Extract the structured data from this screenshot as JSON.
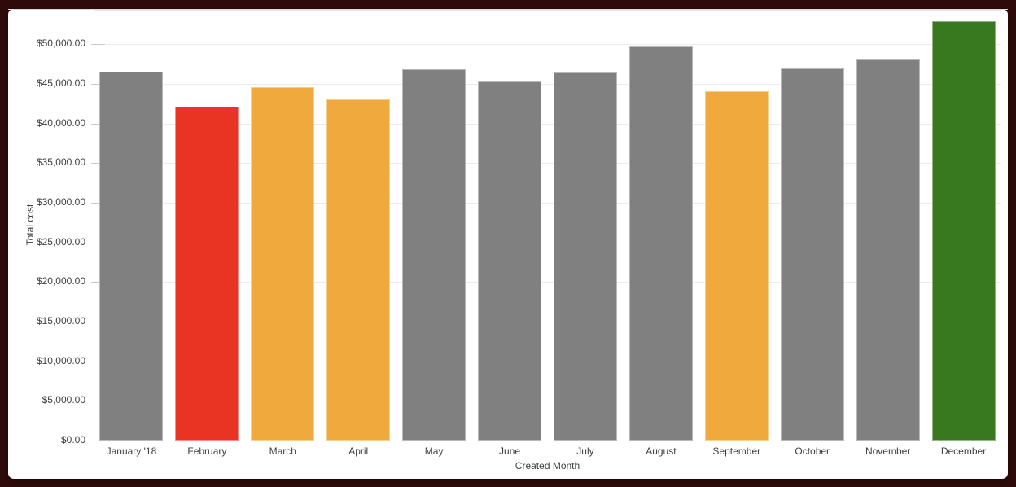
{
  "window": {
    "frame_color": "#2e0a0a",
    "panel_background": "#ffffff"
  },
  "colors": {
    "gridline": "#ececec",
    "baseline": "#e0e0e0",
    "tick_mark": "#c9c9c9",
    "axis_text": "#3f3f3f",
    "bar_gray": "#808080",
    "bar_red": "#ea3423",
    "bar_orange": "#f0a93c",
    "bar_green": "#38791f"
  },
  "chart_data": {
    "type": "bar",
    "title": "",
    "xlabel": "Created Month",
    "ylabel": "Total cost",
    "categories": [
      "January '18",
      "February",
      "March",
      "April",
      "May",
      "June",
      "July",
      "August",
      "September",
      "October",
      "November",
      "December"
    ],
    "values": [
      46500,
      42100,
      44600,
      43100,
      46900,
      45300,
      46400,
      49700,
      44100,
      47000,
      48100,
      52900
    ],
    "bar_colors": [
      "#808080",
      "#ea3423",
      "#f0a93c",
      "#f0a93c",
      "#808080",
      "#808080",
      "#808080",
      "#808080",
      "#f0a93c",
      "#808080",
      "#808080",
      "#38791f"
    ],
    "y_tick_values": [
      0,
      5000,
      10000,
      15000,
      20000,
      25000,
      30000,
      35000,
      40000,
      45000,
      50000
    ],
    "y_tick_labels": [
      "$0.00",
      "$5,000.00",
      "$10,000.00",
      "$15,000.00",
      "$20,000.00",
      "$25,000.00",
      "$30,000.00",
      "$35,000.00",
      "$40,000.00",
      "$45,000.00",
      "$50,000.00"
    ],
    "ylim": [
      0,
      54250
    ],
    "grid": true,
    "legend": "none"
  }
}
